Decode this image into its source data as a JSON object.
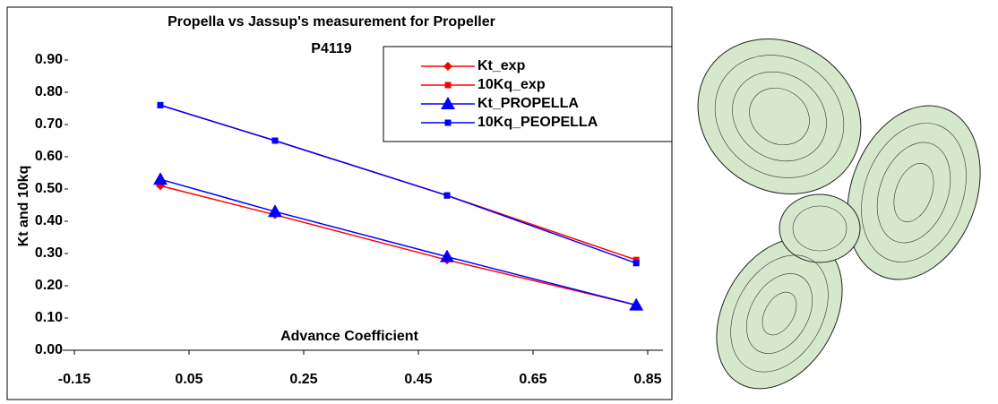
{
  "chart_data": {
    "type": "line",
    "title": [
      "Propella vs Jassup's measurement for Propeller",
      "P4119"
    ],
    "x_label": "Advance Coefficient",
    "y_label": "Kt and 10kq",
    "x": [
      0,
      0.2,
      0.5,
      0.83
    ],
    "series": [
      {
        "name": "Kt_exp",
        "color": "#ff0000",
        "marker": "diamond",
        "values": [
          0.51,
          0.42,
          0.28,
          0.14
        ]
      },
      {
        "name": "10Kq_exp",
        "color": "#ff0000",
        "marker": "square",
        "values": [
          0.76,
          0.65,
          0.48,
          0.28
        ]
      },
      {
        "name": "Kt_PROPELLA",
        "color": "#0000ff",
        "marker": "triangle",
        "values": [
          0.53,
          0.43,
          0.29,
          0.14
        ]
      },
      {
        "name": "10Kq_PEOPELLA",
        "color": "#0000ff",
        "marker": "square",
        "values": [
          0.76,
          0.65,
          0.48,
          0.27
        ]
      }
    ],
    "xlim": [
      -0.15,
      0.85
    ],
    "xticks": [
      -0.15,
      0.05,
      0.25,
      0.45,
      0.65,
      0.85
    ],
    "ylim": [
      0,
      0.9
    ],
    "yticks": [
      {
        "value": 0,
        "label": "0.00"
      },
      {
        "value": 0.1,
        "label": "0.10"
      },
      {
        "value": 0.2,
        "label": "0.20"
      },
      {
        "value": 0.3,
        "label": "0.30"
      },
      {
        "value": 0.4,
        "label": "0.40"
      },
      {
        "value": 0.5,
        "label": "0.50"
      },
      {
        "value": 0.6,
        "label": "0.60"
      },
      {
        "value": 0.7,
        "label": "0.70"
      },
      {
        "value": 0.8,
        "label": "0.80"
      },
      {
        "value": 0.9,
        "label": "0.90"
      }
    ],
    "legend": "top-right"
  }
}
